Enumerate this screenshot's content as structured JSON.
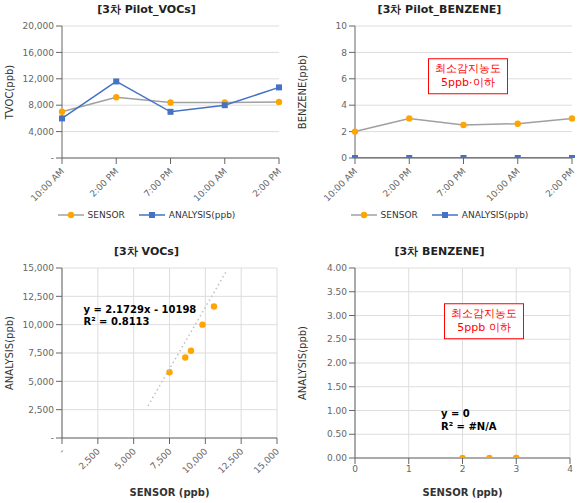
{
  "chart_data": [
    {
      "type": "line",
      "title": "[3차 Pilot_VOCs]",
      "ylabel": "TVOC(ppb)",
      "categories": [
        "10:00 AM",
        "2:00 PM",
        "7:00 PM",
        "10:00 AM",
        "2:00 PM"
      ],
      "series": [
        {
          "name": "SENSOR",
          "color": "#A0A0A0",
          "colors": [
            "#FFA500",
            "#FFA500",
            "#FFA500",
            "#FFA500",
            "#FFA500"
          ],
          "marker": "circle",
          "values": [
            7000,
            9200,
            8400,
            8400,
            8500
          ]
        },
        {
          "name": "ANALYSIS(ppb)",
          "color": "#4472C4",
          "marker": "square",
          "values": [
            6000,
            11600,
            7000,
            8000,
            10700
          ]
        }
      ],
      "ylim": [
        0,
        20000
      ],
      "yticks": [
        {
          "value": 0,
          "label": "-"
        },
        {
          "value": 4000,
          "label": "4,000"
        },
        {
          "value": 8000,
          "label": "8,000"
        },
        {
          "value": 12000,
          "label": "12,000"
        },
        {
          "value": 16000,
          "label": "16,000"
        },
        {
          "value": 20000,
          "label": "20,000"
        }
      ],
      "grid": "y",
      "legend": "bottom"
    },
    {
      "type": "line",
      "title": "[3차 Pilot_BENZENE]",
      "ylabel": "BENZENE(ppb)",
      "categories": [
        "10:00 AM",
        "2:00 PM",
        "7:00 PM",
        "10:00 AM",
        "2:00 PM"
      ],
      "series": [
        {
          "name": "SENSOR",
          "color": "#A0A0A0",
          "colors": [
            "#FFA500",
            "#FFA500",
            "#FFA500",
            "#FFA500",
            "#FFA500"
          ],
          "marker": "circle",
          "values": [
            2.0,
            3.0,
            2.5,
            2.6,
            3.0
          ]
        },
        {
          "name": "ANALYSIS(ppb)",
          "color": "#4472C4",
          "marker": "square",
          "values": [
            0.0,
            0.0,
            0.0,
            0.0,
            0.0
          ]
        }
      ],
      "ylim": [
        0,
        10
      ],
      "yticks": [
        0,
        2,
        4,
        6,
        8,
        10
      ],
      "grid": "y",
      "legend": "bottom",
      "annotations": [
        {
          "text": [
            "최소감지농도",
            "5ppb·이하"
          ],
          "color": "red"
        }
      ]
    },
    {
      "type": "scatter",
      "title": "[3차 VOCs]",
      "xlabel": "SENSOR (ppb)",
      "ylabel": "ANALYSIS(ppb)",
      "series": [
        {
          "type": "scatter",
          "color": "#FFA500",
          "marker": "circle",
          "x": [
            7500,
            9000,
            8600,
            9800,
            10600
          ],
          "values": [
            5800,
            7700,
            7100,
            10000,
            11600
          ]
        },
        {
          "type": "line",
          "color": "#C0C0C0",
          "line_style": "dotted",
          "x": [
            6000,
            11500
          ],
          "values": [
            2839.4,
            14790.35
          ]
        }
      ],
      "xlim": [
        0,
        15000
      ],
      "ylim": [
        0,
        15000
      ],
      "xticks": [
        {
          "value": 0,
          "label": "-"
        },
        {
          "value": 2500,
          "label": "2,500"
        },
        {
          "value": 5000,
          "label": "5,000"
        },
        {
          "value": 7500,
          "label": "7,500"
        },
        {
          "value": 10000,
          "label": "10,000"
        },
        {
          "value": 12500,
          "label": "12,500"
        },
        {
          "value": 15000,
          "label": "15,000"
        }
      ],
      "yticks": [
        {
          "value": 0,
          "label": "-"
        },
        {
          "value": 2500,
          "label": "2,500"
        },
        {
          "value": 5000,
          "label": "5,000"
        },
        {
          "value": 7500,
          "label": "7,500"
        },
        {
          "value": 10000,
          "label": "10,000"
        },
        {
          "value": 12500,
          "label": "12,500"
        },
        {
          "value": 15000,
          "label": "15,000"
        }
      ],
      "grid": true,
      "annotations": [
        {
          "text": [
            "y = 2.1729x - 10198",
            "R² = 0.8113"
          ]
        }
      ]
    },
    {
      "type": "scatter",
      "title": "[3차 BENZENE]",
      "xlabel": "SENSOR (ppb)",
      "ylabel": "ANALYSIS(ppb)",
      "series": [
        {
          "type": "scatter",
          "color": "#FFA500",
          "marker": "circle",
          "x": [
            2.0,
            2.5,
            3.0,
            3.0
          ],
          "values": [
            0.0,
            0.0,
            0.0,
            0.0
          ]
        }
      ],
      "xlim": [
        0,
        4
      ],
      "ylim": [
        0.0,
        4.0
      ],
      "xticks": [
        0,
        1,
        2,
        3,
        4
      ],
      "yticks": [
        {
          "value": 0,
          "label": "0.00"
        },
        {
          "value": 0.5,
          "label": "0.50"
        },
        {
          "value": 1,
          "label": "1.00"
        },
        {
          "value": 1.5,
          "label": "1.50"
        },
        {
          "value": 2,
          "label": "2.00"
        },
        {
          "value": 2.5,
          "label": "2.50"
        },
        {
          "value": 3,
          "label": "3.00"
        },
        {
          "value": 3.5,
          "label": "3.50"
        },
        {
          "value": 4,
          "label": "4.00"
        }
      ],
      "grid": true,
      "annotations": [
        {
          "text": [
            "최소감지농도",
            "5ppb 이하"
          ],
          "color": "red"
        },
        {
          "text": [
            "y = 0",
            "R² = #N/A"
          ]
        }
      ]
    }
  ]
}
